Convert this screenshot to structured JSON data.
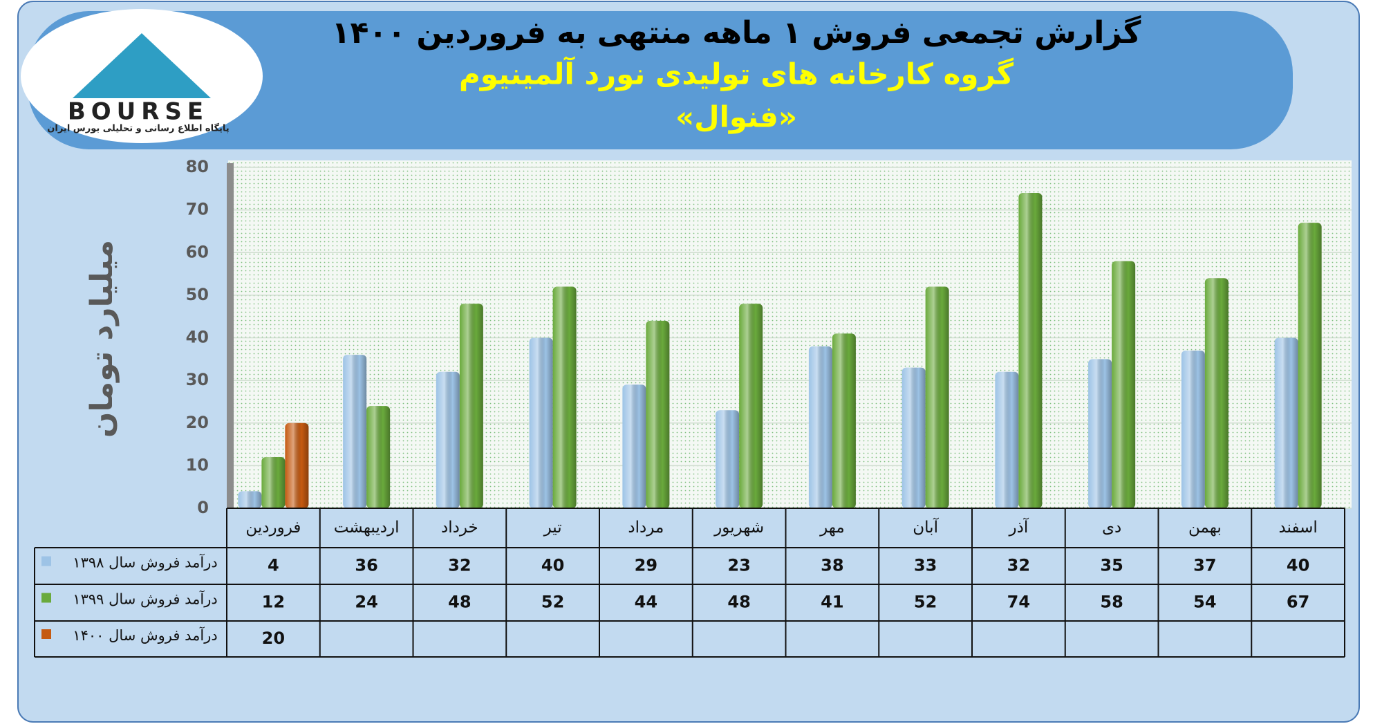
{
  "logo": {
    "text": "BOURSE",
    "tagline": "پایگاه اطلاع رسانی و تحلیلی بورس ایران"
  },
  "chart_data": {
    "type": "bar",
    "title": "گزارش تجمعی فروش ۱ ماهه منتهی به فروردین ۱۴۰۰",
    "subtitle": "گروه کارخانه های تولیدی نورد آلمینیوم",
    "subtitle2": "«فنوال»",
    "y_label": "میلیارد تومان",
    "categories": [
      "فروردین",
      "اردیبهشت",
      "خرداد",
      "تیر",
      "مرداد",
      "شهریور",
      "مهر",
      "آبان",
      "آذر",
      "دی",
      "بهمن",
      "اسفند"
    ],
    "series": [
      {
        "name": "درآمد فروش سال ۱۳۹۸",
        "color": "#9dc3e6",
        "values": [
          4,
          36,
          32,
          40,
          29,
          23,
          38,
          33,
          32,
          35,
          37,
          40
        ]
      },
      {
        "name": "درآمد فروش سال ۱۳۹۹",
        "color": "#6aaa3c",
        "values": [
          12,
          24,
          48,
          52,
          44,
          48,
          41,
          52,
          74,
          58,
          54,
          67
        ]
      },
      {
        "name": "درآمد فروش سال ۱۴۰۰",
        "color": "#c55a11",
        "values": [
          20,
          null,
          null,
          null,
          null,
          null,
          null,
          null,
          null,
          null,
          null,
          null
        ]
      }
    ],
    "ylim": [
      0,
      80
    ],
    "yticks": [
      0,
      10,
      20,
      30,
      40,
      50,
      60,
      70,
      80
    ],
    "grid": true
  }
}
